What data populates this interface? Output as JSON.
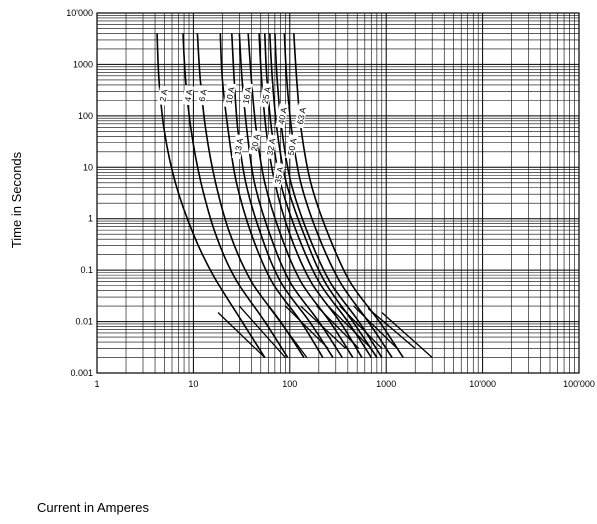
{
  "chart_data": {
    "type": "line",
    "title": "",
    "xlabel": "Current in Amperes",
    "ylabel": "Time in Seconds",
    "xscale": "log",
    "yscale": "log",
    "xlim": [
      1,
      100000
    ],
    "ylim": [
      0.001,
      10000
    ],
    "grid": true,
    "x_ticks": [
      {
        "value": 1,
        "label": "1"
      },
      {
        "value": 10,
        "label": "10"
      },
      {
        "value": 100,
        "label": "100"
      },
      {
        "value": 1000,
        "label": "1000"
      },
      {
        "value": 10000,
        "label": "10'000"
      },
      {
        "value": 100000,
        "label": "100'000"
      }
    ],
    "y_ticks": [
      {
        "value": 0.001,
        "label": "0.001"
      },
      {
        "value": 0.01,
        "label": "0.01"
      },
      {
        "value": 0.1,
        "label": "0.1"
      },
      {
        "value": 1,
        "label": "1"
      },
      {
        "value": 10,
        "label": "10"
      },
      {
        "value": 100,
        "label": "100"
      },
      {
        "value": 1000,
        "label": "1000"
      },
      {
        "value": 10000,
        "label": "10'000"
      }
    ],
    "line_color": "#000000",
    "series": [
      {
        "name": "2 A",
        "label_at": [
          4.9,
          250
        ],
        "points": [
          [
            4.2,
            4000
          ],
          [
            4.4,
            500
          ],
          [
            5,
            50
          ],
          [
            6.5,
            5
          ],
          [
            10,
            0.5
          ],
          [
            16,
            0.08
          ],
          [
            32,
            0.01
          ],
          [
            55,
            0.002
          ]
        ]
      },
      {
        "name": "4 A",
        "label_at": [
          8.9,
          250
        ],
        "points": [
          [
            7.8,
            4000
          ],
          [
            8.3,
            500
          ],
          [
            9.5,
            50
          ],
          [
            12,
            5
          ],
          [
            17,
            0.5
          ],
          [
            27,
            0.07
          ],
          [
            55,
            0.01
          ],
          [
            95,
            0.002
          ]
        ]
      },
      {
        "name": "6 A",
        "label_at": [
          12.5,
          250
        ],
        "points": [
          [
            11,
            4000
          ],
          [
            11.8,
            500
          ],
          [
            13.5,
            50
          ],
          [
            17,
            5
          ],
          [
            24,
            0.5
          ],
          [
            40,
            0.06
          ],
          [
            80,
            0.01
          ],
          [
            140,
            0.002
          ]
        ]
      },
      {
        "name": "10 A",
        "label_at": [
          24,
          250
        ],
        "points": [
          [
            19,
            4000
          ],
          [
            20,
            500
          ],
          [
            23,
            50
          ],
          [
            28,
            5
          ],
          [
            40,
            0.5
          ],
          [
            65,
            0.06
          ],
          [
            130,
            0.01
          ],
          [
            220,
            0.002
          ]
        ]
      },
      {
        "name": "13 A",
        "label_at": [
          29.5,
          25
        ],
        "points": [
          [
            25,
            4000
          ],
          [
            26.5,
            500
          ],
          [
            29,
            50
          ],
          [
            35,
            5
          ],
          [
            50,
            0.5
          ],
          [
            80,
            0.06
          ],
          [
            160,
            0.01
          ],
          [
            280,
            0.002
          ]
        ]
      },
      {
        "name": "16 A",
        "label_at": [
          36,
          250
        ],
        "points": [
          [
            30,
            4000
          ],
          [
            32,
            500
          ],
          [
            36,
            50
          ],
          [
            43,
            5
          ],
          [
            62,
            0.5
          ],
          [
            100,
            0.06
          ],
          [
            200,
            0.01
          ],
          [
            350,
            0.002
          ]
        ]
      },
      {
        "name": "20 A",
        "label_at": [
          44,
          30
        ],
        "points": [
          [
            37,
            4000
          ],
          [
            40,
            500
          ],
          [
            45,
            50
          ],
          [
            55,
            5
          ],
          [
            80,
            0.5
          ],
          [
            130,
            0.06
          ],
          [
            260,
            0.01
          ],
          [
            450,
            0.002
          ]
        ]
      },
      {
        "name": "25 A",
        "label_at": [
          57,
          250
        ],
        "points": [
          [
            48,
            4000
          ],
          [
            51,
            500
          ],
          [
            57,
            50
          ],
          [
            70,
            5
          ],
          [
            100,
            0.5
          ],
          [
            165,
            0.06
          ],
          [
            330,
            0.01
          ],
          [
            560,
            0.002
          ]
        ]
      },
      {
        "name": "32 A",
        "label_at": [
          64,
          25
        ],
        "points": [
          [
            55,
            4000
          ],
          [
            58,
            500
          ],
          [
            65,
            50
          ],
          [
            80,
            5
          ],
          [
            120,
            0.5
          ],
          [
            200,
            0.06
          ],
          [
            400,
            0.01
          ],
          [
            700,
            0.002
          ]
        ]
      },
      {
        "name": "35 A",
        "label_at": [
          77,
          7
        ],
        "points": [
          [
            62,
            4000
          ],
          [
            66,
            500
          ],
          [
            74,
            50
          ],
          [
            92,
            5
          ],
          [
            140,
            0.5
          ],
          [
            230,
            0.06
          ],
          [
            450,
            0.01
          ],
          [
            800,
            0.002
          ]
        ]
      },
      {
        "name": "40 A",
        "label_at": [
          84,
          100
        ],
        "points": [
          [
            70,
            4000
          ],
          [
            74,
            500
          ],
          [
            83,
            50
          ],
          [
            103,
            5
          ],
          [
            155,
            0.5
          ],
          [
            260,
            0.06
          ],
          [
            520,
            0.01
          ],
          [
            900,
            0.002
          ]
        ]
      },
      {
        "name": "50 A",
        "label_at": [
          106,
          25
        ],
        "points": [
          [
            88,
            4000
          ],
          [
            93,
            500
          ],
          [
            105,
            50
          ],
          [
            130,
            5
          ],
          [
            195,
            0.5
          ],
          [
            330,
            0.06
          ],
          [
            650,
            0.01
          ],
          [
            1150,
            0.002
          ]
        ]
      },
      {
        "name": "63 A",
        "label_at": [
          132,
          100
        ],
        "points": [
          [
            110,
            4000
          ],
          [
            118,
            500
          ],
          [
            132,
            50
          ],
          [
            165,
            5
          ],
          [
            250,
            0.5
          ],
          [
            420,
            0.06
          ],
          [
            850,
            0.01
          ],
          [
            1500,
            0.002
          ]
        ]
      }
    ],
    "minor_segments": [
      [
        [
          18,
          0.015
        ],
        [
          55,
          0.002
        ]
      ],
      [
        [
          30,
          0.02
        ],
        [
          90,
          0.002
        ]
      ],
      [
        [
          60,
          0.02
        ],
        [
          150,
          0.002
        ]
      ],
      [
        [
          90,
          0.02
        ],
        [
          250,
          0.003
        ]
      ],
      [
        [
          130,
          0.02
        ],
        [
          380,
          0.003
        ]
      ],
      [
        [
          190,
          0.02
        ],
        [
          520,
          0.003
        ]
      ],
      [
        [
          250,
          0.02
        ],
        [
          700,
          0.003
        ]
      ],
      [
        [
          330,
          0.02
        ],
        [
          900,
          0.003
        ]
      ],
      [
        [
          460,
          0.02
        ],
        [
          1300,
          0.003
        ]
      ],
      [
        [
          650,
          0.018
        ],
        [
          2000,
          0.003
        ]
      ],
      [
        [
          900,
          0.015
        ],
        [
          3000,
          0.002
        ]
      ]
    ]
  }
}
